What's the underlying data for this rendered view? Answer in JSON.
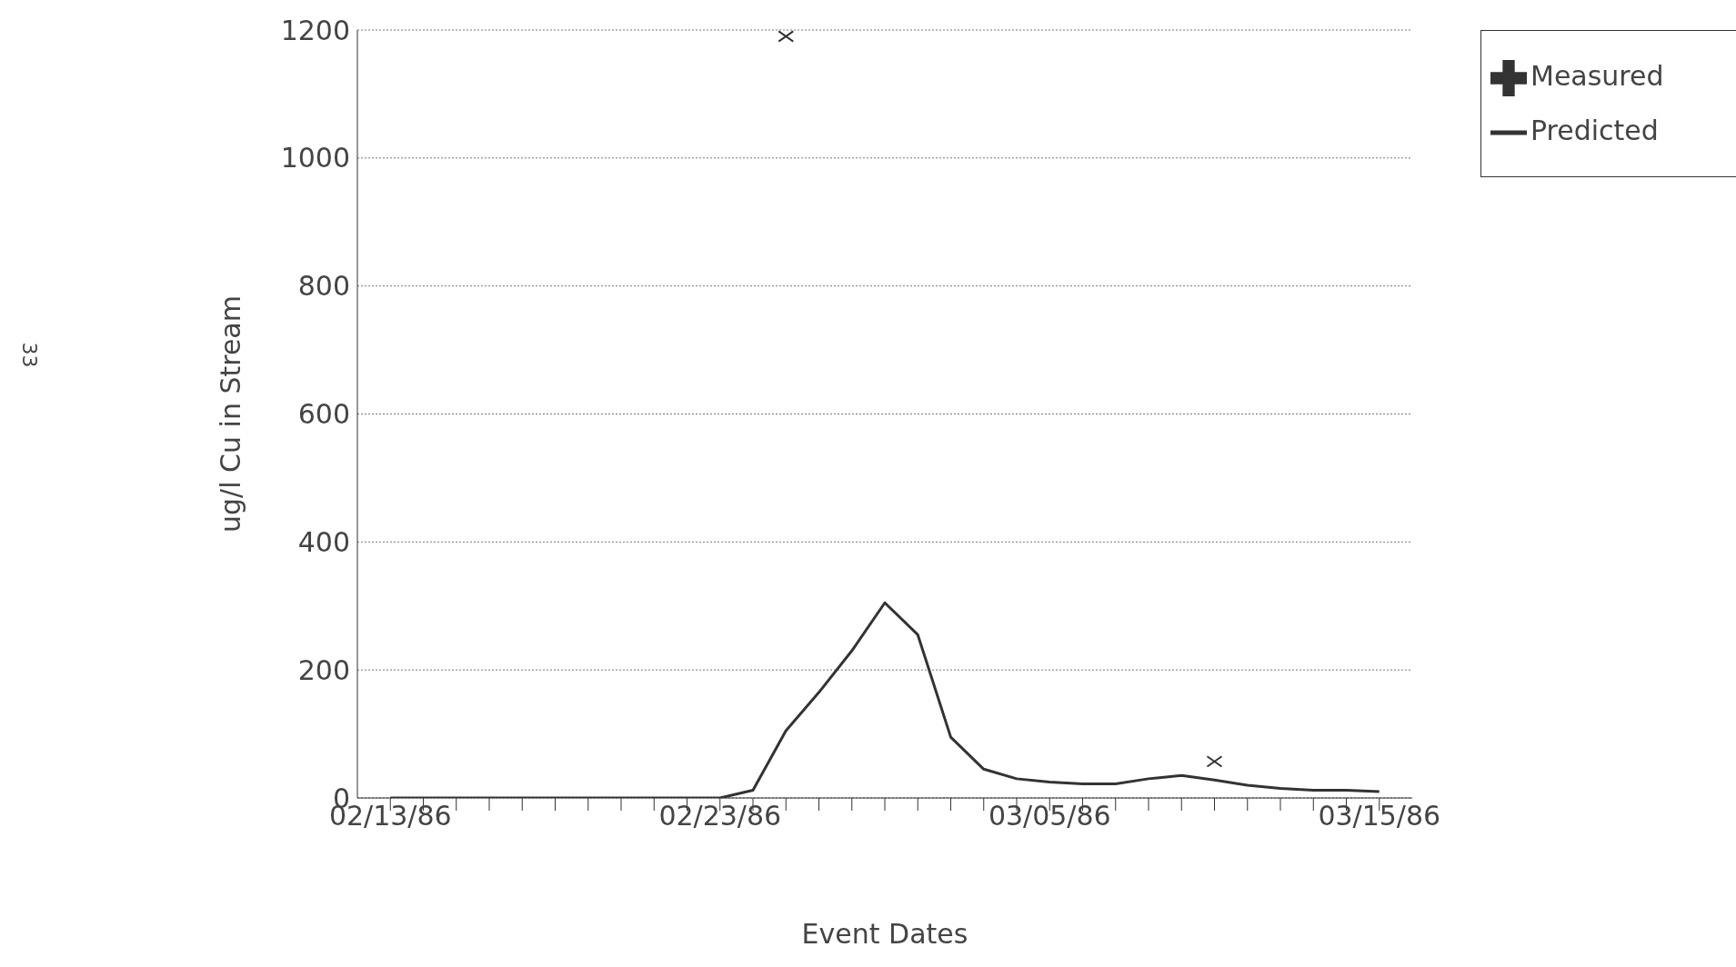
{
  "chart_data": {
    "type": "line",
    "xlabel": "Event Dates",
    "ylabel": "ug/l Cu in Stream",
    "xlim": [
      "1986-02-12",
      "1986-03-16"
    ],
    "xticks": [
      {
        "value": "1986-02-13",
        "label": "02/13/86"
      },
      {
        "value": "1986-02-14",
        "label": null
      },
      {
        "value": "1986-02-15",
        "label": null
      },
      {
        "value": "1986-02-16",
        "label": null
      },
      {
        "value": "1986-02-17",
        "label": null
      },
      {
        "value": "1986-02-18",
        "label": null
      },
      {
        "value": "1986-02-19",
        "label": null
      },
      {
        "value": "1986-02-20",
        "label": null
      },
      {
        "value": "1986-02-21",
        "label": null
      },
      {
        "value": "1986-02-22",
        "label": null
      },
      {
        "value": "1986-02-23",
        "label": "02/23/86"
      },
      {
        "value": "1986-02-24",
        "label": null
      },
      {
        "value": "1986-02-25",
        "label": null
      },
      {
        "value": "1986-02-26",
        "label": null
      },
      {
        "value": "1986-02-27",
        "label": null
      },
      {
        "value": "1986-02-28",
        "label": null
      },
      {
        "value": "1986-03-01",
        "label": null
      },
      {
        "value": "1986-03-02",
        "label": null
      },
      {
        "value": "1986-03-03",
        "label": null
      },
      {
        "value": "1986-03-04",
        "label": null
      },
      {
        "value": "1986-03-05",
        "label": "03/05/86"
      },
      {
        "value": "1986-03-06",
        "label": null
      },
      {
        "value": "1986-03-07",
        "label": null
      },
      {
        "value": "1986-03-08",
        "label": null
      },
      {
        "value": "1986-03-09",
        "label": null
      },
      {
        "value": "1986-03-10",
        "label": null
      },
      {
        "value": "1986-03-11",
        "label": null
      },
      {
        "value": "1986-03-12",
        "label": null
      },
      {
        "value": "1986-03-13",
        "label": null
      },
      {
        "value": "1986-03-14",
        "label": null
      },
      {
        "value": "1986-03-15",
        "label": "03/15/86"
      }
    ],
    "ylim": [
      0,
      1200
    ],
    "yticks": [
      0,
      200,
      400,
      600,
      800,
      1000,
      1200
    ],
    "grid": "y",
    "legend": "top right",
    "series": [
      {
        "name": "Predicted",
        "color": "#333333",
        "marker": "none",
        "x": [
          "1986-02-13",
          "1986-02-23",
          "1986-02-24",
          "1986-02-25",
          "1986-02-26",
          "1986-02-27",
          "1986-02-28",
          "1986-03-01",
          "1986-03-02",
          "1986-03-03",
          "1986-03-04",
          "1986-03-05",
          "1986-03-06",
          "1986-03-07",
          "1986-03-08",
          "1986-03-09",
          "1986-03-10",
          "1986-03-11",
          "1986-03-12",
          "1986-03-13",
          "1986-03-14",
          "1986-03-15"
        ],
        "values": [
          0,
          0,
          12,
          105,
          165,
          230,
          305,
          255,
          95,
          45,
          30,
          25,
          22,
          22,
          30,
          35,
          28,
          20,
          15,
          12,
          12,
          10
        ]
      },
      {
        "name": "Measured",
        "type": "scatter",
        "color": "#333333",
        "marker": "cross",
        "x": [
          "1986-02-25",
          "1986-03-10"
        ],
        "values": [
          1190,
          57
        ]
      }
    ],
    "annotations": [
      "33"
    ]
  }
}
